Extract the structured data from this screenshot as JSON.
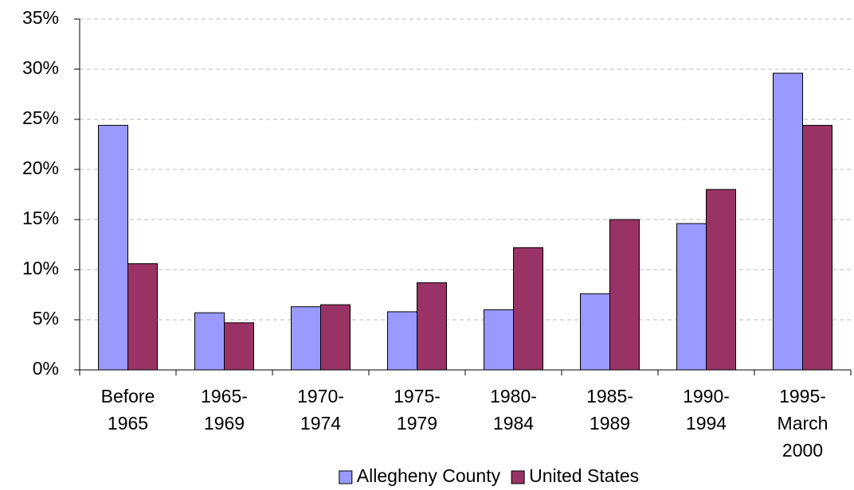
{
  "chart_data": {
    "type": "bar",
    "categories": [
      [
        "Before",
        "1965"
      ],
      [
        "1965-",
        "1969"
      ],
      [
        "1970-",
        "1974"
      ],
      [
        "1975-",
        "1979"
      ],
      [
        "1980-",
        "1984"
      ],
      [
        "1985-",
        "1989"
      ],
      [
        "1990-",
        "1994"
      ],
      [
        "1995-",
        "March",
        "2000"
      ]
    ],
    "series": [
      {
        "name": "Allegheny County",
        "color": "#9999ff",
        "values": [
          24.4,
          5.7,
          6.3,
          5.8,
          6.0,
          7.6,
          14.6,
          29.6
        ]
      },
      {
        "name": "United States",
        "color": "#993366",
        "values": [
          10.6,
          4.7,
          6.5,
          8.7,
          12.2,
          15.0,
          18.0,
          24.4
        ]
      }
    ],
    "ylim": [
      0,
      35
    ],
    "yticks": [
      {
        "value": 0,
        "label": "0%"
      },
      {
        "value": 5,
        "label": "5%"
      },
      {
        "value": 10,
        "label": "10%"
      },
      {
        "value": 15,
        "label": "15%"
      },
      {
        "value": 20,
        "label": "20%"
      },
      {
        "value": 25,
        "label": "25%"
      },
      {
        "value": 30,
        "label": "30%"
      },
      {
        "value": 35,
        "label": "35%"
      }
    ],
    "grid": true,
    "legend": "bottom"
  }
}
